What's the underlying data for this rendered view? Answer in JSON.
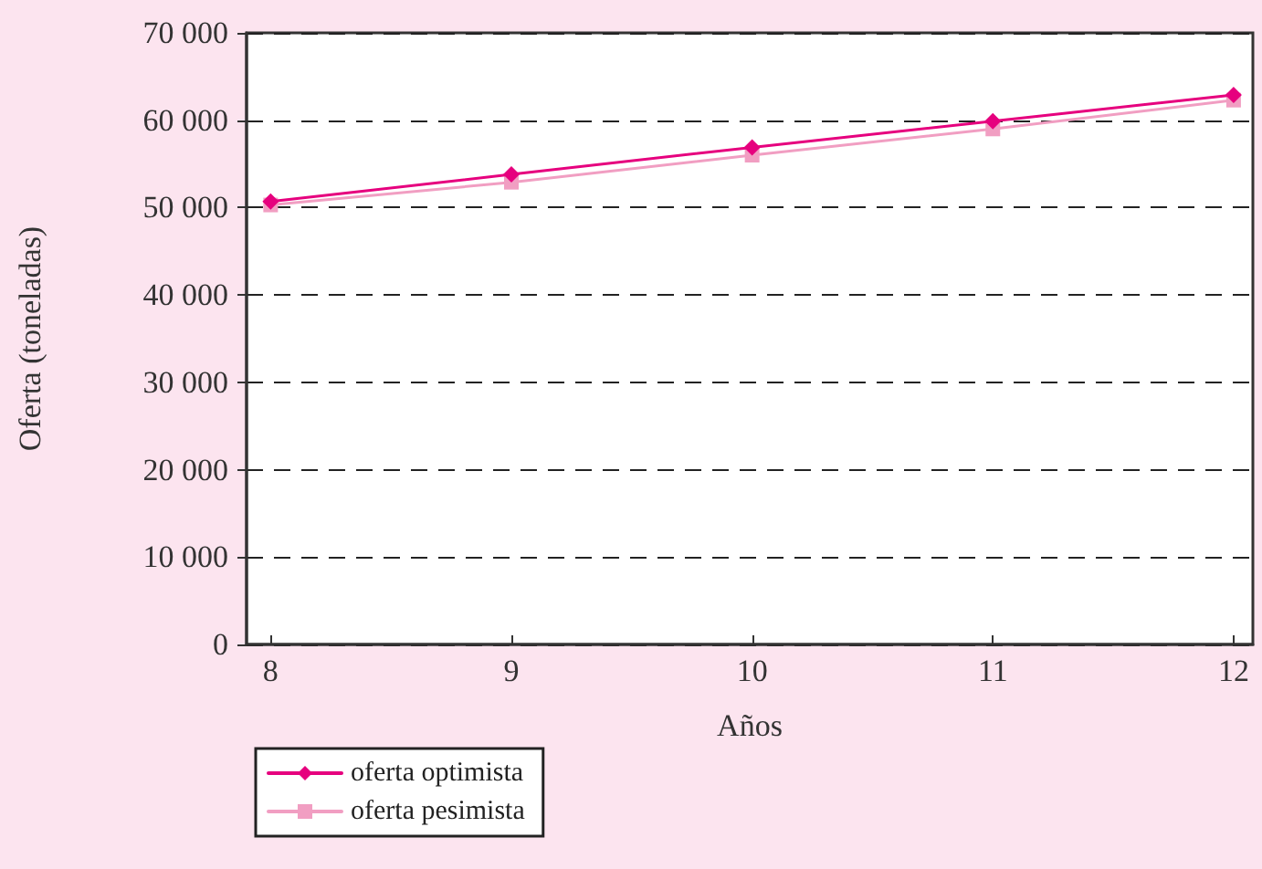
{
  "chart_data": {
    "type": "line",
    "xlabel": "Años",
    "ylabel": "Oferta (toneladas)",
    "x": [
      8,
      9,
      10,
      11,
      12
    ],
    "series": [
      {
        "name": "oferta optimista",
        "color": "#e6007e",
        "marker": "diamond",
        "values": [
          50700,
          53800,
          56900,
          59900,
          62900
        ]
      },
      {
        "name": "oferta pesimista",
        "color": "#f19ec2",
        "marker": "square",
        "values": [
          50300,
          52900,
          56000,
          59000,
          62300
        ]
      }
    ],
    "xlim": [
      7.9,
      12.08
    ],
    "xticks": [
      8,
      9,
      10,
      11,
      12
    ],
    "ylim": [
      0,
      70000
    ],
    "yticks": [
      0,
      {
        "value": 10000,
        "label": "10 000"
      },
      {
        "value": 20000,
        "label": "20 000"
      },
      {
        "value": 30000,
        "label": "30 000"
      },
      {
        "value": 40000,
        "label": "40 000"
      },
      {
        "value": 50000,
        "label": "50 000"
      },
      {
        "value": 60000,
        "label": "60 000"
      },
      {
        "value": 70000,
        "label": "70 000"
      }
    ],
    "grid": "y",
    "legend": "bottom left",
    "line_style": "solid"
  }
}
